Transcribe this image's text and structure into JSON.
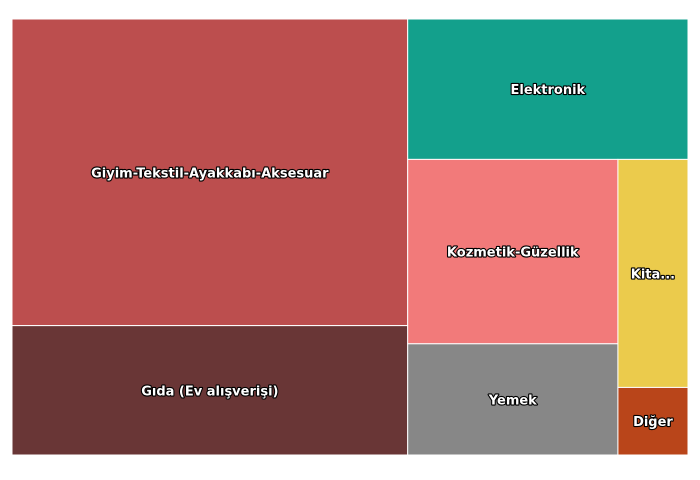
{
  "chart_data": {
    "type": "treemap",
    "title": "",
    "items": [
      {
        "label": "Giyim-Tekstil-Ayakkabı-Aksesuar",
        "display": "Giyim-Tekstil-Ayakkabı-Aksesuar",
        "value": 41,
        "color": "#bc4e4e"
      },
      {
        "label": "Gıda (Ev alışverişi)",
        "display": "Gıda (Ev alışverişi)",
        "value": 17.3,
        "color": "#693636"
      },
      {
        "label": "Elektronik",
        "display": "Elektronik",
        "value": 13.3,
        "color": "#13a08c"
      },
      {
        "label": "Kozmetik-Güzellik",
        "display": "Kozmetik-Güzellik",
        "value": 13.1,
        "color": "#f27a7a"
      },
      {
        "label": "Yemek",
        "display": "Yemek",
        "value": 7.9,
        "color": "#878787"
      },
      {
        "label": "Kitap",
        "display": "Kita...",
        "value": 5.4,
        "color": "#ebcb4c"
      },
      {
        "label": "Diğer",
        "display": "Diğer",
        "value": 1.6,
        "color": "#b9451a"
      }
    ]
  }
}
